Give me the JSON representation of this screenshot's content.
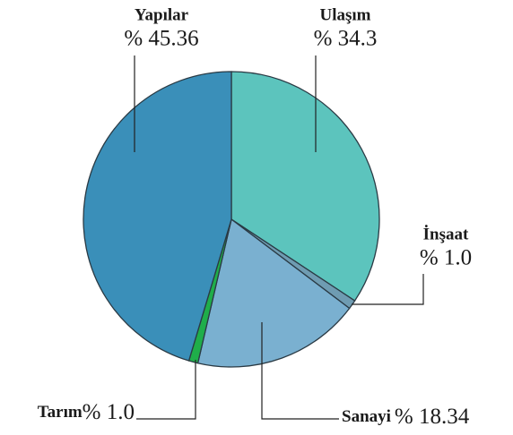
{
  "chart_data": {
    "type": "pie",
    "categories": [
      "Ulaşım",
      "İnşaat",
      "Sanayi",
      "Tarım",
      "Yapılar"
    ],
    "values": [
      34.3,
      1.0,
      18.34,
      1.0,
      45.36
    ],
    "value_labels": [
      "% 34.3",
      "% 1.0",
      "% 18.34",
      "% 1.0",
      "% 45.36"
    ],
    "colors": [
      "#5cc4bd",
      "#6f9cb2",
      "#7ab0d0",
      "#1fae4a",
      "#3a8fb9"
    ]
  }
}
